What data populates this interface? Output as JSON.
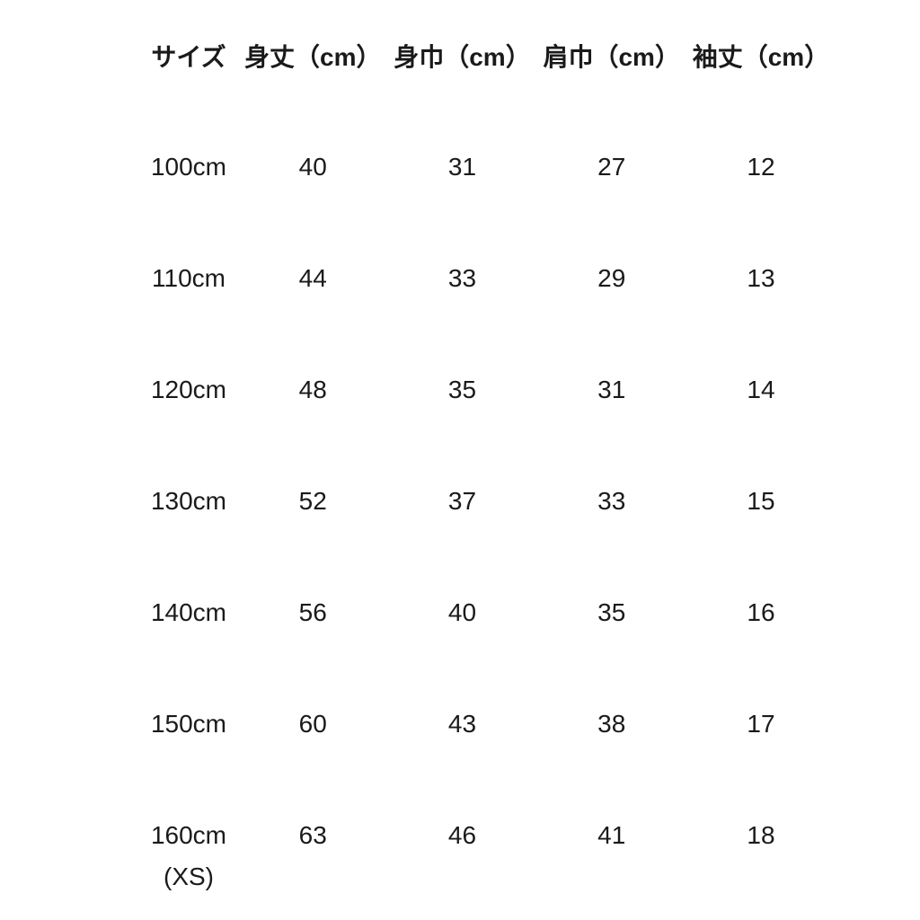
{
  "page": {
    "background_color": "#ffffff",
    "text_color": "#1a1a1a"
  },
  "size_chart": {
    "headers": {
      "size": "サイズ",
      "body_length": "身丈（cm）",
      "body_width": "身巾（cm）",
      "shoulder_width": "肩巾（cm）",
      "sleeve_length": "袖丈（cm）"
    },
    "rows": [
      {
        "size": "100cm",
        "body_length": "40",
        "body_width": "31",
        "shoulder_width": "27",
        "sleeve_length": "12"
      },
      {
        "size": "110cm",
        "body_length": "44",
        "body_width": "33",
        "shoulder_width": "29",
        "sleeve_length": "13"
      },
      {
        "size": "120cm",
        "body_length": "48",
        "body_width": "35",
        "shoulder_width": "31",
        "sleeve_length": "14"
      },
      {
        "size": "130cm",
        "body_length": "52",
        "body_width": "37",
        "shoulder_width": "33",
        "sleeve_length": "15"
      },
      {
        "size": "140cm",
        "body_length": "56",
        "body_width": "40",
        "shoulder_width": "35",
        "sleeve_length": "16"
      },
      {
        "size": "150cm",
        "body_length": "60",
        "body_width": "43",
        "shoulder_width": "38",
        "sleeve_length": "17"
      },
      {
        "size": "160cm",
        "size_note": "(XS)",
        "body_length": "63",
        "body_width": "46",
        "shoulder_width": "41",
        "sleeve_length": "18"
      }
    ]
  },
  "chart_data": {
    "type": "table",
    "title": "",
    "columns": [
      "サイズ",
      "身丈（cm）",
      "身巾（cm）",
      "肩巾（cm）",
      "袖丈（cm）"
    ],
    "rows": [
      [
        "100cm",
        40,
        31,
        27,
        12
      ],
      [
        "110cm",
        44,
        33,
        29,
        13
      ],
      [
        "120cm",
        48,
        35,
        31,
        14
      ],
      [
        "130cm",
        52,
        37,
        33,
        15
      ],
      [
        "140cm",
        56,
        40,
        35,
        16
      ],
      [
        "150cm",
        60,
        43,
        38,
        17
      ],
      [
        "160cm (XS)",
        63,
        46,
        41,
        18
      ]
    ],
    "layout": {
      "grid": false,
      "borders": false,
      "header_bold": true
    }
  }
}
